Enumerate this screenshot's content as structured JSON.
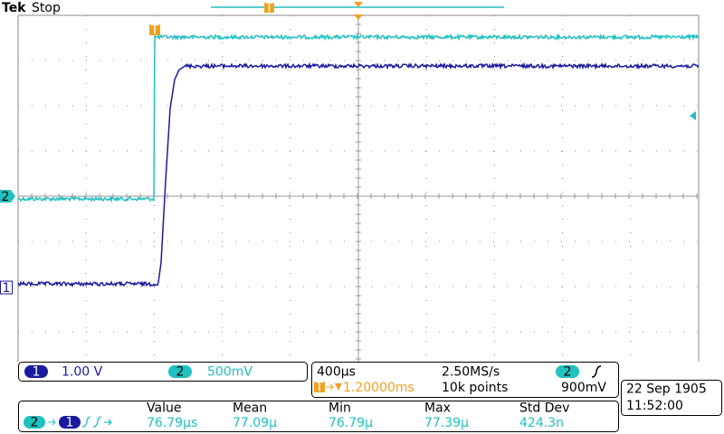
{
  "header": {
    "brand": "Tek",
    "status": "Stop",
    "trigger_marker": "T"
  },
  "channels": [
    {
      "label": "1",
      "scale": "1.00 V"
    },
    {
      "label": "2",
      "scale": "500mV"
    }
  ],
  "timebase": {
    "scale": "400µs",
    "sample_rate": "2.50MS/s",
    "trigger_channel": "2",
    "trigger_delay": "1.20000ms",
    "record_length": "10k points",
    "trigger_level": "900mV"
  },
  "clock": {
    "date": "22 Sep  1905",
    "time": "11:52:00"
  },
  "measurement": {
    "source": "2",
    "target": "1",
    "headers": [
      "Value",
      "Mean",
      "Min",
      "Max",
      "Std Dev"
    ],
    "values": [
      "76.79µs",
      "77.09µ",
      "76.79µ",
      "77.39µ",
      "424.3n"
    ]
  }
}
